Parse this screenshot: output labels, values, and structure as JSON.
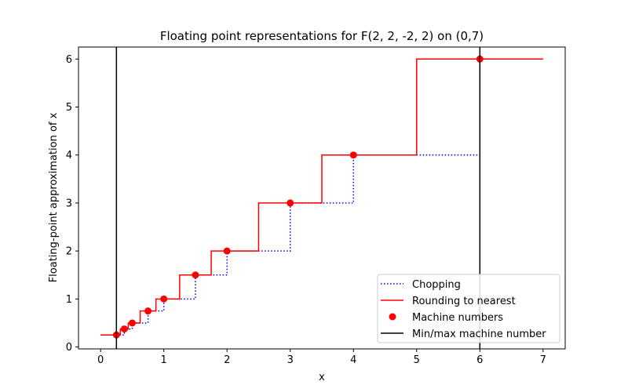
{
  "chart_data": {
    "type": "line",
    "title": "Floating point representations for F(2, 2, -2, 2) on (0,7)",
    "xlabel": "x",
    "ylabel": "Floating-point approximation of x",
    "xlim": [
      -0.35,
      7.35
    ],
    "ylim": [
      -0.04,
      6.25
    ],
    "xticks": [
      0,
      1,
      2,
      3,
      4,
      5,
      6,
      7
    ],
    "yticks": [
      0,
      1,
      2,
      3,
      4,
      5,
      6
    ],
    "grid": false,
    "legend_position": "lower-right",
    "series": [
      {
        "name": "Chopping",
        "kind": "step-dotted",
        "color": "#0000ff",
        "x": [
          0,
          0.375,
          0.375,
          0.5,
          0.5,
          0.625,
          0.625,
          0.75,
          0.75,
          0.875,
          0.875,
          1,
          1,
          1.25,
          1.25,
          1.5,
          1.5,
          1.75,
          1.75,
          2,
          2,
          2.5,
          2.5,
          3,
          3,
          3.5,
          3.5,
          4,
          4,
          5,
          5,
          6,
          6,
          7
        ],
        "y": [
          0.25,
          0.25,
          0.375,
          0.375,
          0.5,
          0.5,
          0.5,
          0.5,
          0.75,
          0.75,
          0.75,
          0.75,
          1,
          1,
          1,
          1,
          1.5,
          1.5,
          1.5,
          1.5,
          2,
          2,
          2,
          2,
          3,
          3,
          3,
          3,
          4,
          4,
          4,
          4,
          6,
          6
        ]
      },
      {
        "name": "Rounding to nearest",
        "kind": "step-solid",
        "color": "#ff0000",
        "x": [
          0,
          0.3125,
          0.3125,
          0.4375,
          0.4375,
          0.625,
          0.625,
          0.875,
          0.875,
          1.25,
          1.25,
          1.75,
          1.75,
          2.5,
          2.5,
          3.5,
          3.5,
          5,
          5,
          7
        ],
        "y": [
          0.25,
          0.25,
          0.375,
          0.375,
          0.5,
          0.5,
          0.75,
          0.75,
          1,
          1,
          1.5,
          1.5,
          2,
          2,
          3,
          3,
          4,
          4,
          6,
          6
        ]
      },
      {
        "name": "Machine numbers",
        "kind": "scatter",
        "color": "#ff0000",
        "x": [
          0.25,
          0.375,
          0.5,
          0.75,
          1,
          1.5,
          2,
          3,
          4,
          6
        ],
        "y": [
          0.25,
          0.375,
          0.5,
          0.75,
          1,
          1.5,
          2,
          3,
          4,
          6
        ]
      },
      {
        "name": "Min/max machine number",
        "kind": "vline",
        "color": "#000000",
        "x": [
          0.25,
          6
        ]
      }
    ]
  }
}
